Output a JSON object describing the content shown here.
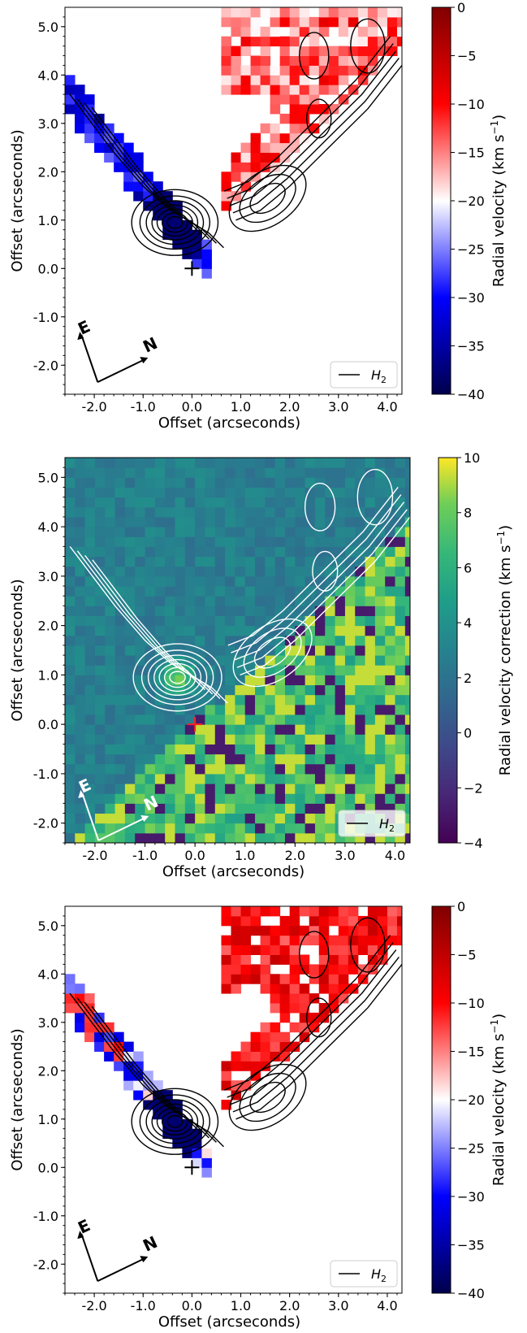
{
  "figure": {
    "panels": [
      {
        "id": "top",
        "xlabel": "Offset (arcseconds)",
        "ylabel": "Offset (arcseconds)",
        "legend": "H",
        "legend_sub": "2",
        "compass": {
          "e": "E",
          "n": "N"
        },
        "cmap": "bwr",
        "colorbar": {
          "label": "Radial velocity (km s",
          "unit_sup": "−1",
          "close": ")",
          "ticks": [
            "0",
            "−5",
            "−10",
            "−15",
            "−20",
            "−25",
            "−30",
            "−35",
            "−40"
          ]
        }
      },
      {
        "id": "middle",
        "xlabel": "Offset (arcseconds)",
        "ylabel": "Offset (arcseconds)",
        "legend": "H",
        "legend_sub": "2",
        "compass": {
          "e": "E",
          "n": "N"
        },
        "cmap": "viridis",
        "colorbar": {
          "label": "Radial velocity correction (km s",
          "unit_sup": "−1",
          "close": ")",
          "ticks": [
            "10",
            "8",
            "6",
            "4",
            "2",
            "0",
            "−2",
            "−4"
          ]
        }
      },
      {
        "id": "bottom",
        "xlabel": "Offset (arcseconds)",
        "ylabel": "Offset (arcseconds)",
        "legend": "H",
        "legend_sub": "2",
        "compass": {
          "e": "E",
          "n": "N"
        },
        "cmap": "bwr",
        "colorbar": {
          "label": "Radial velocity (km s",
          "unit_sup": "−1",
          "close": ")",
          "ticks": [
            "0",
            "−5",
            "−10",
            "−15",
            "−20",
            "−25",
            "−30",
            "−35",
            "−40"
          ]
        }
      }
    ]
  },
  "chart_data": [
    {
      "type": "heatmap",
      "panel": "top",
      "xlabel": "Offset (arcseconds)",
      "ylabel": "Offset (arcseconds)",
      "xlim": [
        -2.6,
        4.3
      ],
      "ylim": [
        -2.6,
        5.4
      ],
      "xticks": [
        "-2.0",
        "-1.0",
        "0.0",
        "1.0",
        "2.0",
        "3.0",
        "4.0"
      ],
      "yticks": [
        "-2.0",
        "-1.0",
        "0.0",
        "1.0",
        "2.0",
        "3.0",
        "4.0",
        "5.0"
      ],
      "source_marker": {
        "x": 0.0,
        "y": 0.0,
        "symbol": "+"
      },
      "peak_contour_center": {
        "x": -0.35,
        "y": 0.95
      },
      "colorbar_range": [
        -40,
        0
      ],
      "colorbar_label": "Radial velocity (km s−1)",
      "legend": [
        "H2 (contours)"
      ]
    },
    {
      "type": "heatmap",
      "panel": "middle",
      "xlabel": "Offset (arcseconds)",
      "ylabel": "Offset (arcseconds)",
      "xlim": [
        -2.6,
        4.3
      ],
      "ylim": [
        -2.4,
        5.4
      ],
      "xticks": [
        "-2.0",
        "-1.0",
        "0.0",
        "1.0",
        "2.0",
        "3.0",
        "4.0"
      ],
      "yticks": [
        "-2.0",
        "-1.0",
        "0.0",
        "1.0",
        "2.0",
        "3.0",
        "4.0",
        "5.0"
      ],
      "source_marker": {
        "x": 0.0,
        "y": 0.0,
        "symbol": "+"
      },
      "peak_contour_center": {
        "x": -0.35,
        "y": 0.95
      },
      "colorbar_range": [
        -5,
        10
      ],
      "colorbar_label": "Radial velocity correction (km s−1)",
      "legend": [
        "H2 (contours)"
      ]
    },
    {
      "type": "heatmap",
      "panel": "bottom",
      "xlabel": "Offset (arcseconds)",
      "ylabel": "Offset (arcseconds)",
      "xlim": [
        -2.6,
        4.3
      ],
      "ylim": [
        -2.6,
        5.4
      ],
      "xticks": [
        "-2.0",
        "-1.0",
        "0.0",
        "1.0",
        "2.0",
        "3.0",
        "4.0"
      ],
      "yticks": [
        "-2.0",
        "-1.0",
        "0.0",
        "1.0",
        "2.0",
        "3.0",
        "4.0",
        "5.0"
      ],
      "source_marker": {
        "x": 0.0,
        "y": 0.0,
        "symbol": "+"
      },
      "peak_contour_center": {
        "x": -0.35,
        "y": 0.95
      },
      "colorbar_range": [
        -40,
        0
      ],
      "colorbar_label": "Radial velocity (km s−1)",
      "legend": [
        "H2 (contours)"
      ]
    }
  ]
}
